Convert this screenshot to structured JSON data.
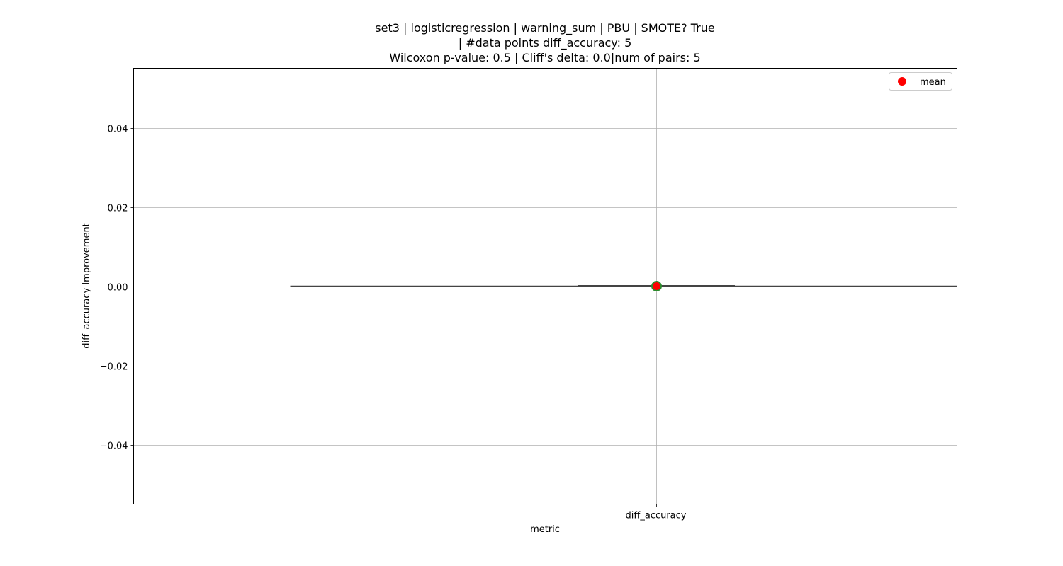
{
  "chart_data": {
    "type": "box",
    "title_lines": [
      "set3 | logisticregression | warning_sum | PBU | SMOTE? True",
      "| #data points diff_accuracy: 5",
      "Wilcoxon p-value: 0.5 | Cliff's delta: 0.0|num of pairs: 5"
    ],
    "xlabel": "metric",
    "ylabel": "diff_accuracy Improvement",
    "categories": [
      "diff_accuracy"
    ],
    "ylim": [
      -0.055,
      0.055
    ],
    "yticks": [
      -0.04,
      -0.02,
      0.0,
      0.02,
      0.04
    ],
    "ytick_labels": [
      "−0.04",
      "−0.02",
      "0.00",
      "0.02",
      "0.04"
    ],
    "boxes": [
      {
        "category": "diff_accuracy",
        "min": 0.0,
        "q1": 0.0,
        "median": 0.0,
        "q3": 0.0,
        "max": 0.0,
        "mean": 0.0
      }
    ],
    "grid": true,
    "legend": {
      "position": "upper-right",
      "entries": [
        {
          "label": "mean",
          "marker": "circle",
          "color": "#ff0000"
        }
      ]
    },
    "colors": {
      "box_line": "#444444",
      "mean_fill": "#ff0000",
      "mean_edge": "#2e8b2e",
      "grid": "#b0b0b0"
    }
  }
}
